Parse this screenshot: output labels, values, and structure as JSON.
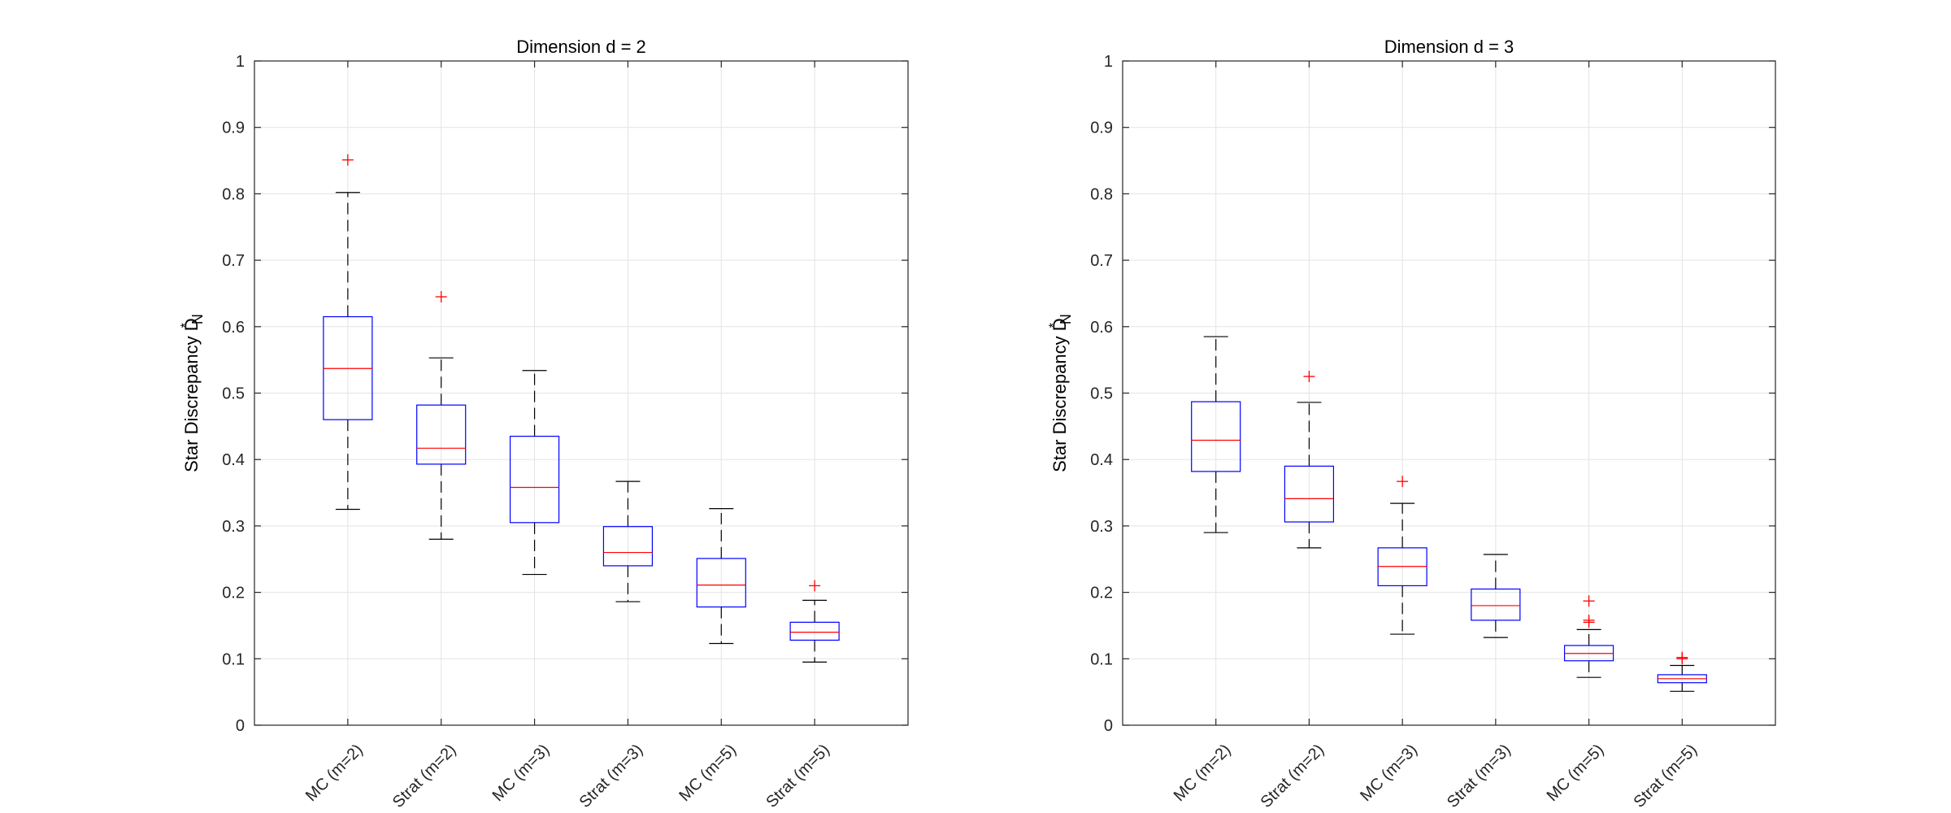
{
  "chart_data": [
    {
      "type": "box",
      "title": "Dimension d = 2",
      "ylabel": {
        "main": "Star Discrepancy D",
        "superscript": "*",
        "subscript": "N"
      },
      "xlabel": "",
      "ylim": [
        0,
        1
      ],
      "yticks": [
        0,
        0.1,
        0.2,
        0.3,
        0.4,
        0.5,
        0.6,
        0.7,
        0.8,
        0.9,
        1
      ],
      "ytick_labels": [
        "0",
        "0.1",
        "0.2",
        "0.3",
        "0.4",
        "0.5",
        "0.6",
        "0.7",
        "0.8",
        "0.9",
        "1"
      ],
      "grid": true,
      "categories": [
        "MC (m=2)",
        "Strat (m=2)",
        "MC (m=3)",
        "Strat (m=3)",
        "MC (m=5)",
        "Strat (m=5)"
      ],
      "boxes": [
        {
          "whisker_low": 0.325,
          "q1": 0.46,
          "median": 0.537,
          "q3": 0.615,
          "whisker_high": 0.802,
          "outliers": [
            0.851
          ]
        },
        {
          "whisker_low": 0.28,
          "q1": 0.393,
          "median": 0.417,
          "q3": 0.482,
          "whisker_high": 0.553,
          "outliers": [
            0.645
          ]
        },
        {
          "whisker_low": 0.227,
          "q1": 0.305,
          "median": 0.358,
          "q3": 0.435,
          "whisker_high": 0.534,
          "outliers": []
        },
        {
          "whisker_low": 0.186,
          "q1": 0.24,
          "median": 0.26,
          "q3": 0.299,
          "whisker_high": 0.367,
          "outliers": []
        },
        {
          "whisker_low": 0.123,
          "q1": 0.178,
          "median": 0.211,
          "q3": 0.251,
          "whisker_high": 0.326,
          "outliers": []
        },
        {
          "whisker_low": 0.095,
          "q1": 0.128,
          "median": 0.14,
          "q3": 0.155,
          "whisker_high": 0.188,
          "outliers": [
            0.21
          ]
        }
      ]
    },
    {
      "type": "box",
      "title": "Dimension d = 3",
      "ylabel": {
        "main": "Star Discrepancy D",
        "superscript": "*",
        "subscript": "N"
      },
      "xlabel": "",
      "ylim": [
        0,
        1
      ],
      "yticks": [
        0,
        0.1,
        0.2,
        0.3,
        0.4,
        0.5,
        0.6,
        0.7,
        0.8,
        0.9,
        1
      ],
      "ytick_labels": [
        "0",
        "0.1",
        "0.2",
        "0.3",
        "0.4",
        "0.5",
        "0.6",
        "0.7",
        "0.8",
        "0.9",
        "1"
      ],
      "grid": true,
      "categories": [
        "MC (m=2)",
        "Strat (m=2)",
        "MC (m=3)",
        "Strat (m=3)",
        "MC (m=5)",
        "Strat (m=5)"
      ],
      "boxes": [
        {
          "whisker_low": 0.29,
          "q1": 0.382,
          "median": 0.429,
          "q3": 0.487,
          "whisker_high": 0.585,
          "outliers": []
        },
        {
          "whisker_low": 0.267,
          "q1": 0.306,
          "median": 0.341,
          "q3": 0.39,
          "whisker_high": 0.486,
          "outliers": [
            0.525
          ]
        },
        {
          "whisker_low": 0.137,
          "q1": 0.21,
          "median": 0.239,
          "q3": 0.267,
          "whisker_high": 0.334,
          "outliers": [
            0.367
          ]
        },
        {
          "whisker_low": 0.132,
          "q1": 0.158,
          "median": 0.18,
          "q3": 0.205,
          "whisker_high": 0.257,
          "outliers": []
        },
        {
          "whisker_low": 0.072,
          "q1": 0.097,
          "median": 0.108,
          "q3": 0.12,
          "whisker_high": 0.144,
          "outliers": [
            0.155,
            0.158,
            0.187
          ]
        },
        {
          "whisker_low": 0.051,
          "q1": 0.064,
          "median": 0.07,
          "q3": 0.076,
          "whisker_high": 0.09,
          "outliers": [
            0.1,
            0.102
          ]
        }
      ]
    }
  ],
  "colors": {
    "box": "#0000ff",
    "median": "#ff0000",
    "whisker": "#000000",
    "outlier": "#ff0000",
    "grid": "#e3e3e3",
    "axis": "#262626",
    "background": "#ffffff"
  }
}
